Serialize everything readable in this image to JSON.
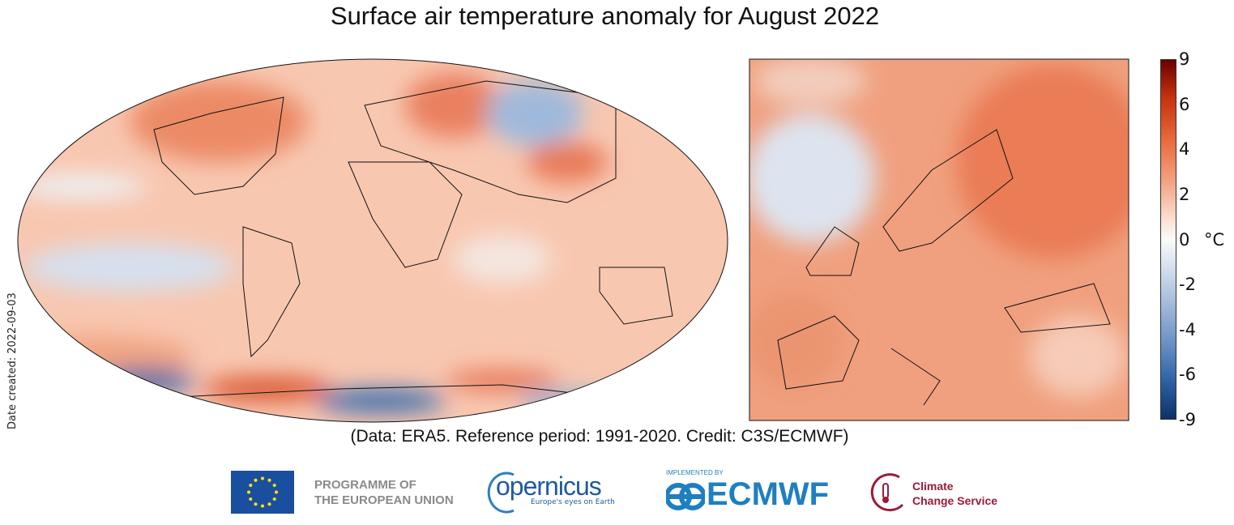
{
  "title": "Surface air temperature anomaly for August 2022",
  "credit": "(Data: ERA5.  Reference period: 1991-2020.  Credit: C3S/ECMWF)",
  "date_created": "Date created: 2022-09-03",
  "colorbar": {
    "ticks": [
      "9",
      "6",
      "4",
      "2",
      "0",
      "-2",
      "-4",
      "-6",
      "-9"
    ],
    "unit": "°C",
    "min": -9,
    "max": 9,
    "colors": {
      "max": "#6b0000",
      "zero": "#fafafa",
      "min": "#0d3266"
    }
  },
  "logos": {
    "eu_label_1": "PROGRAMME OF",
    "eu_label_2": "THE EUROPEAN UNION",
    "copernicus": "opernicus",
    "copernicus_tagline": "Europe's eyes on Earth",
    "implemented_by": "IMPLEMENTED BY",
    "ecmwf": "ECMWF",
    "c3s_1": "Climate",
    "c3s_2": "Change Service"
  }
}
